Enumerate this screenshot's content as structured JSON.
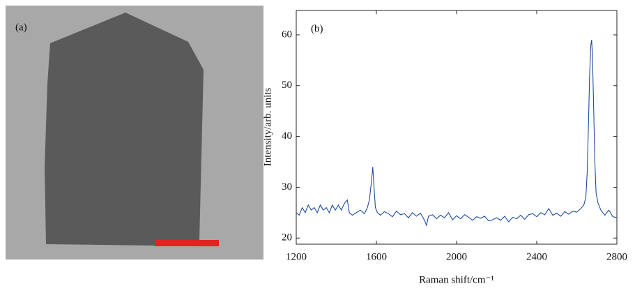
{
  "image_panel": {
    "label": "(a)"
  },
  "chart_data": {
    "type": "line",
    "panel_label": "(b)",
    "x_label": "Raman shift/cm⁻¹",
    "y_label": "Intensity/arb. units",
    "xlim": [
      1200,
      2800
    ],
    "xticks": [
      1200,
      1600,
      2000,
      2400,
      2800
    ],
    "ylim": [
      18.8,
      64.8
    ],
    "yticks": [
      20,
      30,
      40,
      50,
      60
    ],
    "color": "#1f4e9c",
    "x": [
      1200,
      1215,
      1230,
      1245,
      1260,
      1275,
      1290,
      1305,
      1320,
      1335,
      1350,
      1365,
      1380,
      1395,
      1410,
      1425,
      1440,
      1455,
      1465,
      1480,
      1500,
      1520,
      1540,
      1555,
      1565,
      1575,
      1582,
      1588,
      1595,
      1605,
      1620,
      1640,
      1660,
      1680,
      1700,
      1720,
      1740,
      1760,
      1780,
      1800,
      1820,
      1840,
      1850,
      1860,
      1880,
      1900,
      1920,
      1940,
      1960,
      1980,
      2000,
      2020,
      2040,
      2060,
      2080,
      2100,
      2120,
      2140,
      2160,
      2180,
      2200,
      2220,
      2240,
      2260,
      2280,
      2300,
      2320,
      2340,
      2360,
      2380,
      2400,
      2420,
      2440,
      2460,
      2480,
      2500,
      2520,
      2540,
      2560,
      2580,
      2600,
      2620,
      2635,
      2645,
      2652,
      2658,
      2664,
      2670,
      2674,
      2678,
      2684,
      2690,
      2696,
      2705,
      2720,
      2740,
      2760,
      2780,
      2800
    ],
    "values": [
      25,
      24.5,
      26,
      25,
      26.5,
      25.5,
      26,
      25,
      26.5,
      25.5,
      26,
      25,
      26.5,
      25.5,
      26.5,
      25.5,
      26.8,
      27.5,
      25,
      24.5,
      25,
      25.5,
      24.8,
      26,
      27.5,
      31,
      34,
      30,
      26,
      25,
      24.5,
      25.2,
      24.8,
      24.2,
      25.3,
      24.6,
      24.8,
      24,
      25,
      24.3,
      24.9,
      23.5,
      22.5,
      24.3,
      24.6,
      23.8,
      24.5,
      24,
      25,
      23.6,
      24.4,
      23.8,
      24.6,
      24.1,
      23.5,
      24.2,
      23.9,
      24.3,
      23.4,
      23.6,
      24,
      23.5,
      24.3,
      23.2,
      24.1,
      23.8,
      24.5,
      23.7,
      24.6,
      24.8,
      24.2,
      25,
      24.6,
      25.8,
      24.5,
      24.9,
      24.3,
      25.2,
      24.7,
      25.3,
      25.1,
      25.8,
      26.5,
      28,
      33,
      42,
      52,
      58,
      59,
      56,
      46,
      35,
      29,
      27,
      25.5,
      24.5,
      25.5,
      24.2,
      24
    ]
  }
}
